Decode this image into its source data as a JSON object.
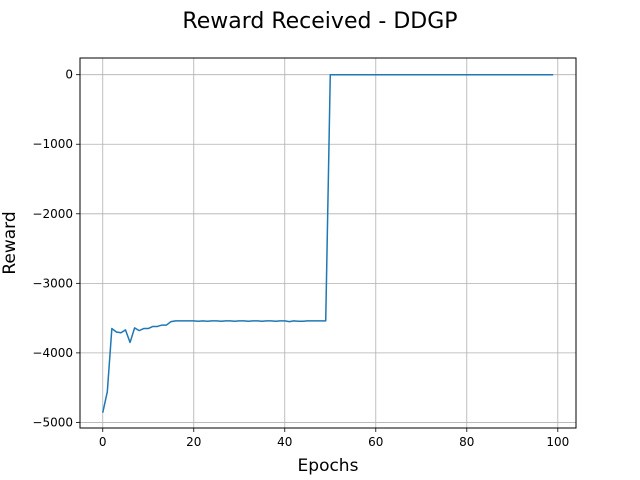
{
  "chart_data": {
    "type": "line",
    "title": "Reward Received - DDGP",
    "xlabel": "Epochs",
    "ylabel": "Reward",
    "xlim": [
      -5,
      104
    ],
    "ylim": [
      -5080,
      240
    ],
    "xticks": [
      0,
      20,
      40,
      60,
      80,
      100
    ],
    "yticks": [
      0,
      -1000,
      -2000,
      -3000,
      -4000,
      -5000
    ],
    "xtick_labels": [
      "0",
      "20",
      "40",
      "60",
      "80",
      "100"
    ],
    "ytick_labels": [
      "0",
      "−1000",
      "−2000",
      "−3000",
      "−4000",
      "−5000"
    ],
    "grid": true,
    "series": [
      {
        "color": "#1f77b4",
        "x": [
          0,
          1,
          2,
          3,
          4,
          5,
          6,
          7,
          8,
          9,
          10,
          11,
          12,
          13,
          14,
          15,
          16,
          17,
          18,
          19,
          20,
          21,
          22,
          23,
          24,
          25,
          26,
          27,
          28,
          29,
          30,
          31,
          32,
          33,
          34,
          35,
          36,
          37,
          38,
          39,
          40,
          41,
          42,
          43,
          44,
          45,
          46,
          47,
          48,
          49,
          50,
          51,
          52,
          53,
          54,
          55,
          56,
          57,
          58,
          59,
          60,
          61,
          62,
          63,
          64,
          65,
          66,
          67,
          68,
          69,
          70,
          71,
          72,
          73,
          74,
          75,
          76,
          77,
          78,
          79,
          80,
          81,
          82,
          83,
          84,
          85,
          86,
          87,
          88,
          89,
          90,
          91,
          92,
          93,
          94,
          95,
          96,
          97,
          98,
          99
        ],
        "y": [
          -4860,
          -4560,
          -3650,
          -3700,
          -3710,
          -3670,
          -3850,
          -3640,
          -3680,
          -3650,
          -3650,
          -3620,
          -3620,
          -3600,
          -3600,
          -3550,
          -3540,
          -3540,
          -3540,
          -3540,
          -3540,
          -3545,
          -3540,
          -3545,
          -3540,
          -3540,
          -3545,
          -3540,
          -3540,
          -3545,
          -3540,
          -3540,
          -3545,
          -3540,
          -3540,
          -3545,
          -3540,
          -3540,
          -3545,
          -3540,
          -3540,
          -3550,
          -3540,
          -3545,
          -3545,
          -3540,
          -3540,
          -3540,
          -3540,
          -3540,
          0,
          0,
          0,
          0,
          0,
          0,
          0,
          0,
          0,
          0,
          0,
          0,
          0,
          0,
          0,
          0,
          0,
          0,
          0,
          0,
          0,
          0,
          0,
          0,
          0,
          0,
          0,
          0,
          0,
          0,
          0,
          0,
          0,
          0,
          0,
          0,
          0,
          0,
          0,
          0,
          0,
          0,
          0,
          0,
          0,
          0,
          0,
          0,
          0,
          0
        ]
      }
    ]
  }
}
